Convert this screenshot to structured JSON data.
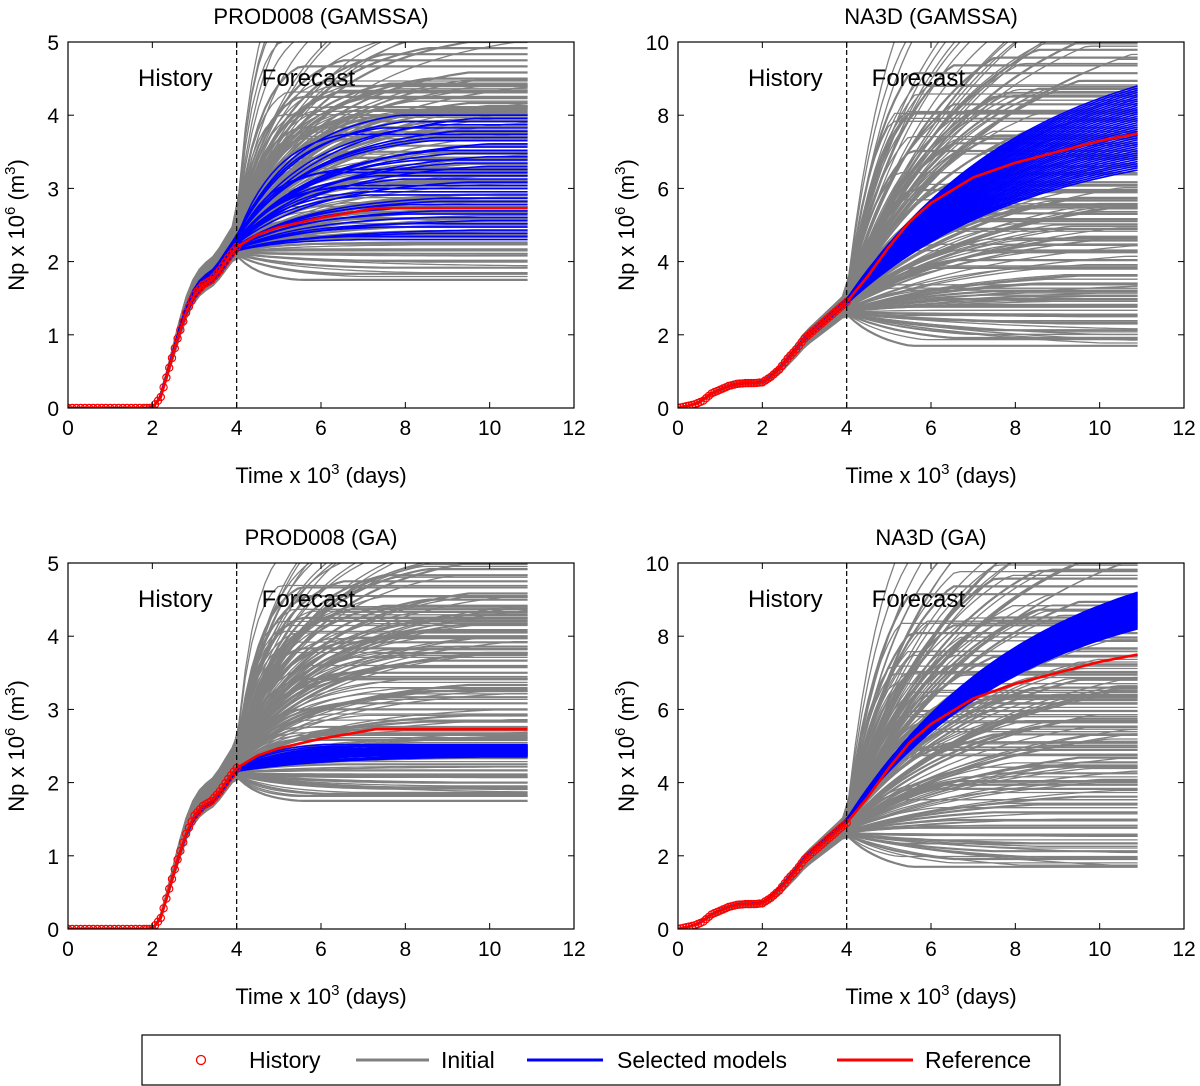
{
  "colors": {
    "initial": "#808080",
    "selected": "#0000ff",
    "reference": "#ff0000",
    "history": "#ff0000"
  },
  "chart_data": [
    {
      "type": "line",
      "title": "PROD008 (GAMSSA)",
      "xlabel": "Time x 10",
      "xlabel_exp": "3",
      "xlabel_unit": " (days)",
      "ylabel": "Np x 10",
      "ylabel_exp": "6",
      "ylabel_unit": " (m",
      "ylabel_unit_exp": "3",
      "ylabel_close": ")",
      "xlim": [
        0,
        12
      ],
      "ylim": [
        0,
        5
      ],
      "xticks": [
        0,
        2,
        4,
        6,
        8,
        10,
        12
      ],
      "yticks": [
        0,
        1,
        2,
        3,
        4,
        5
      ],
      "split_x": 4,
      "annotations": [
        "History",
        "Forecast"
      ],
      "initial_band": {
        "onset": 2.0,
        "end": 10.9,
        "final_min": 1.75,
        "final_max": 5.0
      },
      "selected_band": {
        "onset": 2.0,
        "end": 10.9,
        "final_min": 2.3,
        "final_max": 4.0
      },
      "reference": {
        "x": [
          0,
          2.0,
          2.2,
          2.4,
          2.6,
          2.8,
          3.0,
          3.2,
          3.4,
          3.6,
          3.8,
          4.0,
          4.5,
          5.0,
          6.0,
          7.0,
          7.3,
          10.9
        ],
        "y": [
          0,
          0,
          0.15,
          0.55,
          0.95,
          1.3,
          1.55,
          1.68,
          1.75,
          1.88,
          2.05,
          2.2,
          2.37,
          2.47,
          2.6,
          2.7,
          2.73,
          2.73
        ]
      },
      "history": {
        "x": [
          0,
          0.3,
          0.6,
          0.9,
          1.2,
          1.5,
          1.8,
          2.0,
          2.2,
          2.4,
          2.6,
          2.8,
          3.0,
          3.2,
          3.4,
          3.6,
          3.8,
          4.0
        ],
        "y": [
          0,
          0,
          0,
          0,
          0,
          0,
          0,
          0,
          0.15,
          0.55,
          0.95,
          1.3,
          1.55,
          1.68,
          1.75,
          1.88,
          2.05,
          2.2
        ]
      }
    },
    {
      "type": "line",
      "title": "NA3D (GAMSSA)",
      "xlabel": "Time x 10",
      "xlabel_exp": "3",
      "xlabel_unit": " (days)",
      "ylabel": "Np x 10",
      "ylabel_exp": "6",
      "ylabel_unit": " (m",
      "ylabel_unit_exp": "3",
      "ylabel_close": ")",
      "xlim": [
        0,
        12
      ],
      "ylim": [
        0,
        10
      ],
      "xticks": [
        0,
        2,
        4,
        6,
        8,
        10,
        12
      ],
      "yticks": [
        0,
        2,
        4,
        6,
        8,
        10
      ],
      "split_x": 4,
      "annotations": [
        "History",
        "Forecast"
      ],
      "initial_band": {
        "onset": 0.1,
        "end": 10.9,
        "final_min": 1.7,
        "final_max": 10.0
      },
      "selected_band": {
        "onset": 0.1,
        "end": 10.9,
        "final_min": 6.5,
        "final_max": 8.8
      },
      "reference": {
        "x": [
          0,
          0.2,
          0.5,
          0.8,
          1.0,
          1.2,
          1.5,
          1.8,
          2.0,
          2.2,
          2.5,
          2.8,
          3.0,
          3.3,
          3.6,
          4.0,
          4.5,
          5.0,
          5.5,
          6.0,
          7.0,
          8.0,
          9.0,
          10.0,
          10.9
        ],
        "y": [
          0,
          0.05,
          0.15,
          0.4,
          0.5,
          0.6,
          0.68,
          0.68,
          0.7,
          0.85,
          1.2,
          1.6,
          1.9,
          2.2,
          2.5,
          2.9,
          3.6,
          4.4,
          5.1,
          5.6,
          6.3,
          6.7,
          7.0,
          7.3,
          7.5
        ]
      },
      "history": {
        "x": [
          0,
          0.2,
          0.4,
          0.6,
          0.8,
          1.0,
          1.2,
          1.4,
          1.6,
          1.8,
          2.0,
          2.2,
          2.4,
          2.6,
          2.8,
          3.0,
          3.2,
          3.4,
          3.6,
          3.8,
          4.0
        ],
        "y": [
          0,
          0.05,
          0.1,
          0.2,
          0.4,
          0.5,
          0.6,
          0.66,
          0.68,
          0.68,
          0.7,
          0.85,
          1.05,
          1.35,
          1.6,
          1.9,
          2.1,
          2.3,
          2.5,
          2.7,
          2.9
        ]
      }
    },
    {
      "type": "line",
      "title": "PROD008 (GA)",
      "xlabel": "Time x 10",
      "xlabel_exp": "3",
      "xlabel_unit": " (days)",
      "ylabel": "Np x 10",
      "ylabel_exp": "6",
      "ylabel_unit": " (m",
      "ylabel_unit_exp": "3",
      "ylabel_close": ")",
      "xlim": [
        0,
        12
      ],
      "ylim": [
        0,
        5
      ],
      "xticks": [
        0,
        2,
        4,
        6,
        8,
        10,
        12
      ],
      "yticks": [
        0,
        1,
        2,
        3,
        4,
        5
      ],
      "split_x": 4,
      "annotations": [
        "History",
        "Forecast"
      ],
      "initial_band": {
        "onset": 2.0,
        "end": 10.9,
        "final_min": 1.75,
        "final_max": 5.0
      },
      "selected_band": {
        "onset": 2.0,
        "end": 10.9,
        "final_min": 2.35,
        "final_max": 2.52
      },
      "reference": {
        "x": [
          0,
          2.0,
          2.2,
          2.4,
          2.6,
          2.8,
          3.0,
          3.2,
          3.4,
          3.6,
          3.8,
          4.0,
          4.5,
          5.0,
          6.0,
          7.0,
          7.3,
          10.9
        ],
        "y": [
          0,
          0,
          0.15,
          0.55,
          0.95,
          1.3,
          1.55,
          1.68,
          1.75,
          1.88,
          2.05,
          2.2,
          2.37,
          2.47,
          2.6,
          2.7,
          2.73,
          2.73
        ]
      },
      "history": {
        "x": [
          0,
          0.3,
          0.6,
          0.9,
          1.2,
          1.5,
          1.8,
          2.0,
          2.2,
          2.4,
          2.6,
          2.8,
          3.0,
          3.2,
          3.4,
          3.6,
          3.8,
          4.0
        ],
        "y": [
          0,
          0,
          0,
          0,
          0,
          0,
          0,
          0,
          0.15,
          0.55,
          0.95,
          1.3,
          1.55,
          1.68,
          1.75,
          1.88,
          2.05,
          2.2
        ]
      }
    },
    {
      "type": "line",
      "title": "NA3D (GA)",
      "xlabel": "Time x 10",
      "xlabel_exp": "3",
      "xlabel_unit": " (days)",
      "ylabel": "Np x 10",
      "ylabel_exp": "6",
      "ylabel_unit": " (m",
      "ylabel_unit_exp": "3",
      "ylabel_close": ")",
      "xlim": [
        0,
        12
      ],
      "ylim": [
        0,
        10
      ],
      "xticks": [
        0,
        2,
        4,
        6,
        8,
        10,
        12
      ],
      "yticks": [
        0,
        2,
        4,
        6,
        8,
        10
      ],
      "split_x": 4,
      "annotations": [
        "History",
        "Forecast"
      ],
      "initial_band": {
        "onset": 0.1,
        "end": 10.9,
        "final_min": 1.7,
        "final_max": 10.0
      },
      "selected_band": {
        "onset": 0.1,
        "end": 10.9,
        "final_min": 8.2,
        "final_max": 9.2
      },
      "reference": {
        "x": [
          0,
          0.2,
          0.5,
          0.8,
          1.0,
          1.2,
          1.5,
          1.8,
          2.0,
          2.2,
          2.5,
          2.8,
          3.0,
          3.3,
          3.6,
          4.0,
          4.5,
          5.0,
          5.5,
          6.0,
          7.0,
          8.0,
          9.0,
          10.0,
          10.9
        ],
        "y": [
          0,
          0.05,
          0.15,
          0.4,
          0.5,
          0.6,
          0.68,
          0.68,
          0.7,
          0.85,
          1.2,
          1.6,
          1.9,
          2.2,
          2.5,
          2.9,
          3.6,
          4.4,
          5.1,
          5.6,
          6.3,
          6.7,
          7.0,
          7.3,
          7.5
        ]
      },
      "history": {
        "x": [
          0,
          0.2,
          0.4,
          0.6,
          0.8,
          1.0,
          1.2,
          1.4,
          1.6,
          1.8,
          2.0,
          2.2,
          2.4,
          2.6,
          2.8,
          3.0,
          3.2,
          3.4,
          3.6,
          3.8,
          4.0
        ],
        "y": [
          0,
          0.05,
          0.1,
          0.2,
          0.4,
          0.5,
          0.6,
          0.66,
          0.68,
          0.68,
          0.7,
          0.85,
          1.05,
          1.35,
          1.6,
          1.9,
          2.1,
          2.3,
          2.5,
          2.7,
          2.9
        ]
      }
    }
  ],
  "legend": {
    "entries": [
      {
        "label": "History",
        "kind": "marker"
      },
      {
        "label": "Initial",
        "kind": "line",
        "color_key": "initial"
      },
      {
        "label": "Selected models",
        "kind": "line",
        "color_key": "selected"
      },
      {
        "label": "Reference",
        "kind": "line",
        "color_key": "reference"
      }
    ]
  }
}
